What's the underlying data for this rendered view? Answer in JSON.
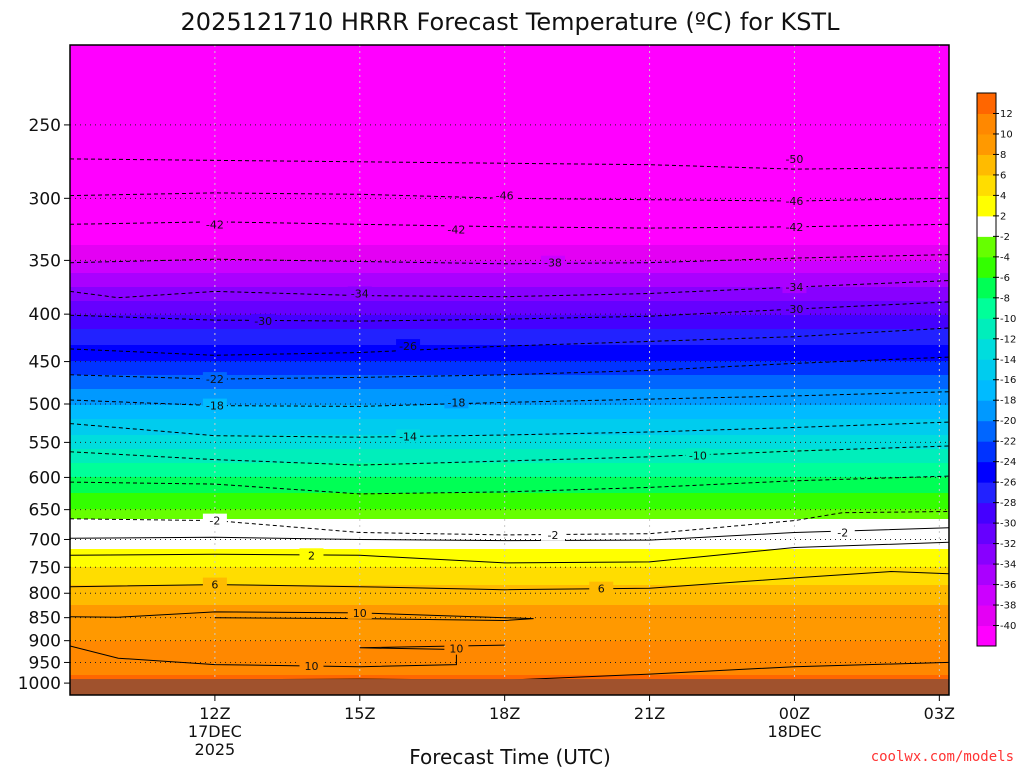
{
  "chart_data": {
    "type": "heatmap",
    "title": "2025121710 HRRR Forecast Temperature (ºC) for KSTL",
    "xlabel": "Forecast Time (UTC)",
    "ylabel": "",
    "credit": "coolwx.com/models",
    "y_scale": "log",
    "y_reversed": true,
    "ylim_hpa": [
      1030,
      205
    ],
    "xlim_hours": [
      9,
      27.2
    ],
    "x_ticks": [
      {
        "hour": 12,
        "label": "12Z",
        "sub1": "17DEC",
        "sub2": "2025"
      },
      {
        "hour": 15,
        "label": "15Z",
        "sub1": "",
        "sub2": ""
      },
      {
        "hour": 18,
        "label": "18Z",
        "sub1": "",
        "sub2": ""
      },
      {
        "hour": 21,
        "label": "21Z",
        "sub1": "",
        "sub2": ""
      },
      {
        "hour": 24,
        "label": "00Z",
        "sub1": "18DEC",
        "sub2": ""
      },
      {
        "hour": 27,
        "label": "03Z",
        "sub1": "",
        "sub2": ""
      }
    ],
    "y_ticks": [
      {
        "p": 250,
        "label": "250"
      },
      {
        "p": 300,
        "label": "300"
      },
      {
        "p": 350,
        "label": "350"
      },
      {
        "p": 400,
        "label": "400"
      },
      {
        "p": 450,
        "label": "450"
      },
      {
        "p": 500,
        "label": "500"
      },
      {
        "p": 550,
        "label": "550"
      },
      {
        "p": 600,
        "label": "600"
      },
      {
        "p": 650,
        "label": "650"
      },
      {
        "p": 700,
        "label": "700"
      },
      {
        "p": 750,
        "label": "750"
      },
      {
        "p": 800,
        "label": "800"
      },
      {
        "p": 850,
        "label": "850"
      },
      {
        "p": 900,
        "label": "900"
      },
      {
        "p": 950,
        "label": "950"
      },
      {
        "p": 1000,
        "label": "1000"
      }
    ],
    "levels_hpa": [
      205,
      250,
      300,
      350,
      400,
      450,
      500,
      550,
      600,
      650,
      680,
      700,
      750,
      800,
      850,
      900,
      950,
      980,
      1000
    ],
    "temperature_profile_c": [
      -54,
      -50,
      -46,
      -38,
      -30,
      -24,
      -18,
      -13,
      -8,
      -4,
      0,
      1,
      4,
      7,
      9,
      10,
      11,
      12,
      13
    ],
    "surface": {
      "pressure_hpa": 990,
      "color": "#a0522d"
    },
    "colorbar": {
      "bounds": [
        -42,
        -40,
        -38,
        -36,
        -34,
        -32,
        -30,
        -28,
        -26,
        -24,
        -22,
        -20,
        -18,
        -16,
        -14,
        -12,
        -10,
        -8,
        -6,
        -4,
        -2,
        2,
        4,
        6,
        8,
        10,
        12,
        14
      ],
      "colors": [
        "#ff00ff",
        "#e400f4",
        "#cc00ff",
        "#aa00ff",
        "#8800ff",
        "#6600ff",
        "#4400ff",
        "#2222ff",
        "#0000ff",
        "#0033ff",
        "#0066ff",
        "#0099ff",
        "#00bbff",
        "#00ccee",
        "#00dddd",
        "#00eebb",
        "#00ff99",
        "#00ff55",
        "#33ff00",
        "#66ff00",
        "#ffffff",
        "#ffff00",
        "#ffdd00",
        "#ffbb00",
        "#ff9900",
        "#ff8800",
        "#ff6600"
      ],
      "tick_labels": [
        "12",
        "10",
        "8",
        "6",
        "4",
        "2",
        "-2",
        "-4",
        "-6",
        "-8",
        "-10",
        "-12",
        "-14",
        "-16",
        "-18",
        "-20",
        "-22",
        "-24",
        "-26",
        "-28",
        "-30",
        "-32",
        "-34",
        "-36",
        "-38",
        "-40"
      ]
    },
    "contour_levels": [
      {
        "value": -50,
        "pts": [
          [
            9,
            272
          ],
          [
            15,
            274
          ],
          [
            21,
            276
          ],
          [
            24,
            279
          ],
          [
            27.2,
            278
          ]
        ]
      },
      {
        "value": -46,
        "pts": [
          [
            9,
            298
          ],
          [
            12,
            296
          ],
          [
            15,
            297
          ],
          [
            18,
            300
          ],
          [
            21,
            301
          ],
          [
            24,
            302
          ],
          [
            27.2,
            300
          ]
        ]
      },
      {
        "value": -42,
        "pts": [
          [
            9,
            320
          ],
          [
            12,
            318
          ],
          [
            15,
            320
          ],
          [
            18,
            322
          ],
          [
            21,
            323
          ],
          [
            24,
            322
          ],
          [
            27.2,
            320
          ]
        ]
      },
      {
        "value": -38,
        "pts": [
          [
            9,
            352
          ],
          [
            12,
            349
          ],
          [
            15,
            351
          ],
          [
            18,
            353
          ],
          [
            21,
            352
          ],
          [
            24,
            348
          ],
          [
            27.2,
            345
          ]
        ]
      },
      {
        "value": -34,
        "pts": [
          [
            9,
            378
          ],
          [
            10,
            384
          ],
          [
            12,
            378
          ],
          [
            15,
            382
          ],
          [
            18,
            383
          ],
          [
            21,
            380
          ],
          [
            24,
            374
          ],
          [
            27.2,
            368
          ]
        ]
      },
      {
        "value": -30,
        "pts": [
          [
            9,
            401
          ],
          [
            12,
            406
          ],
          [
            15,
            407
          ],
          [
            18,
            405
          ],
          [
            21,
            402
          ],
          [
            24,
            395
          ],
          [
            27.2,
            388
          ]
        ]
      },
      {
        "value": -26,
        "pts": [
          [
            9,
            436
          ],
          [
            12,
            443
          ],
          [
            15,
            440
          ],
          [
            18,
            433
          ],
          [
            21,
            428
          ],
          [
            24,
            423
          ],
          [
            27.2,
            414
          ]
        ]
      },
      {
        "value": -22,
        "pts": [
          [
            9,
            465
          ],
          [
            12,
            470
          ],
          [
            15,
            468
          ],
          [
            18,
            465
          ],
          [
            21,
            460
          ],
          [
            24,
            452
          ],
          [
            27.2,
            445
          ]
        ]
      },
      {
        "value": -18,
        "pts": [
          [
            9,
            495
          ],
          [
            12,
            502
          ],
          [
            15,
            503
          ],
          [
            18,
            498
          ],
          [
            21,
            494
          ],
          [
            24,
            490
          ],
          [
            27.2,
            485
          ]
        ]
      },
      {
        "value": -14,
        "pts": [
          [
            9,
            525
          ],
          [
            12,
            541
          ],
          [
            15,
            543
          ],
          [
            18,
            540
          ],
          [
            21,
            536
          ],
          [
            24,
            530
          ],
          [
            27.2,
            523
          ]
        ]
      },
      {
        "value": -10,
        "pts": [
          [
            9,
            563
          ],
          [
            12,
            574
          ],
          [
            15,
            582
          ],
          [
            18,
            576
          ],
          [
            21,
            570
          ],
          [
            24,
            562
          ],
          [
            27.2,
            555
          ]
        ]
      },
      {
        "value": -6,
        "pts": [
          [
            9,
            607
          ],
          [
            12,
            610
          ],
          [
            15,
            625
          ],
          [
            18,
            622
          ],
          [
            21,
            615
          ],
          [
            24,
            605
          ],
          [
            27.2,
            598
          ]
        ]
      },
      {
        "value": -2,
        "pts": [
          [
            9,
            665
          ],
          [
            12,
            668
          ],
          [
            15,
            688
          ],
          [
            18,
            692
          ],
          [
            21,
            690
          ],
          [
            24,
            668
          ],
          [
            25,
            655
          ],
          [
            27.2,
            653
          ]
        ]
      },
      {
        "value": 2,
        "pts": [
          [
            9,
            698
          ],
          [
            12,
            696
          ],
          [
            15,
            700
          ],
          [
            18,
            702
          ],
          [
            21,
            701
          ],
          [
            24,
            688
          ],
          [
            27.2,
            680
          ]
        ]
      },
      {
        "value": 2,
        "pts": [
          [
            9,
            728
          ],
          [
            12,
            726
          ],
          [
            15,
            728
          ],
          [
            18,
            742
          ],
          [
            21,
            740
          ],
          [
            24,
            714
          ],
          [
            27.2,
            705
          ]
        ]
      },
      {
        "value": 6,
        "pts": [
          [
            9,
            787
          ],
          [
            12,
            783
          ],
          [
            15,
            787
          ],
          [
            18,
            793
          ],
          [
            21,
            790
          ],
          [
            24,
            770
          ],
          [
            26,
            758
          ],
          [
            27.2,
            762
          ]
        ]
      },
      {
        "value": 10,
        "pts": [
          [
            9,
            848
          ],
          [
            10,
            849
          ],
          [
            12,
            838
          ],
          [
            15,
            840
          ],
          [
            18,
            850
          ],
          [
            18.6,
            852
          ],
          [
            18,
            856
          ],
          [
            15,
            852
          ],
          [
            12,
            850
          ]
        ]
      },
      {
        "value": 10,
        "pts": [
          [
            9,
            912
          ],
          [
            10,
            940
          ],
          [
            12,
            955
          ],
          [
            15,
            960
          ],
          [
            17,
            955
          ],
          [
            17,
            920
          ],
          [
            15,
            916
          ],
          [
            16,
            914
          ],
          [
            18,
            910
          ]
        ]
      },
      {
        "value": 10,
        "pts": [
          [
            12,
            992
          ],
          [
            15,
            990
          ],
          [
            18,
            993
          ],
          [
            21,
            978
          ],
          [
            24,
            960
          ],
          [
            27.2,
            950
          ]
        ]
      }
    ],
    "contour_labels": [
      {
        "text": "-50",
        "hour": 24,
        "p": 272
      },
      {
        "text": "-46",
        "hour": 18,
        "p": 298
      },
      {
        "text": "-46",
        "hour": 24,
        "p": 302
      },
      {
        "text": "-42",
        "hour": 12,
        "p": 320
      },
      {
        "text": "-42",
        "hour": 17,
        "p": 324
      },
      {
        "text": "-42",
        "hour": 24,
        "p": 322
      },
      {
        "text": "-38",
        "hour": 19,
        "p": 352
      },
      {
        "text": "-34",
        "hour": 15,
        "p": 380
      },
      {
        "text": "-34",
        "hour": 24,
        "p": 374
      },
      {
        "text": "-30",
        "hour": 13,
        "p": 407
      },
      {
        "text": "-30",
        "hour": 24,
        "p": 395
      },
      {
        "text": "-26",
        "hour": 16,
        "p": 433
      },
      {
        "text": "-22",
        "hour": 12,
        "p": 470
      },
      {
        "text": "-18",
        "hour": 12,
        "p": 502
      },
      {
        "text": "-18",
        "hour": 17,
        "p": 498
      },
      {
        "text": "-14",
        "hour": 16,
        "p": 542
      },
      {
        "text": "-10",
        "hour": 22,
        "p": 568
      },
      {
        "text": "-2",
        "hour": 12,
        "p": 668
      },
      {
        "text": "-2",
        "hour": 19,
        "p": 692
      },
      {
        "text": "2",
        "hour": 14,
        "p": 728
      },
      {
        "text": "-2",
        "hour": 25,
        "p": 688
      },
      {
        "text": "6",
        "hour": 12,
        "p": 783
      },
      {
        "text": "6",
        "hour": 20,
        "p": 791
      },
      {
        "text": "10",
        "hour": 15,
        "p": 840
      },
      {
        "text": "10",
        "hour": 17,
        "p": 918
      },
      {
        "text": "10",
        "hour": 14,
        "p": 958
      }
    ]
  }
}
